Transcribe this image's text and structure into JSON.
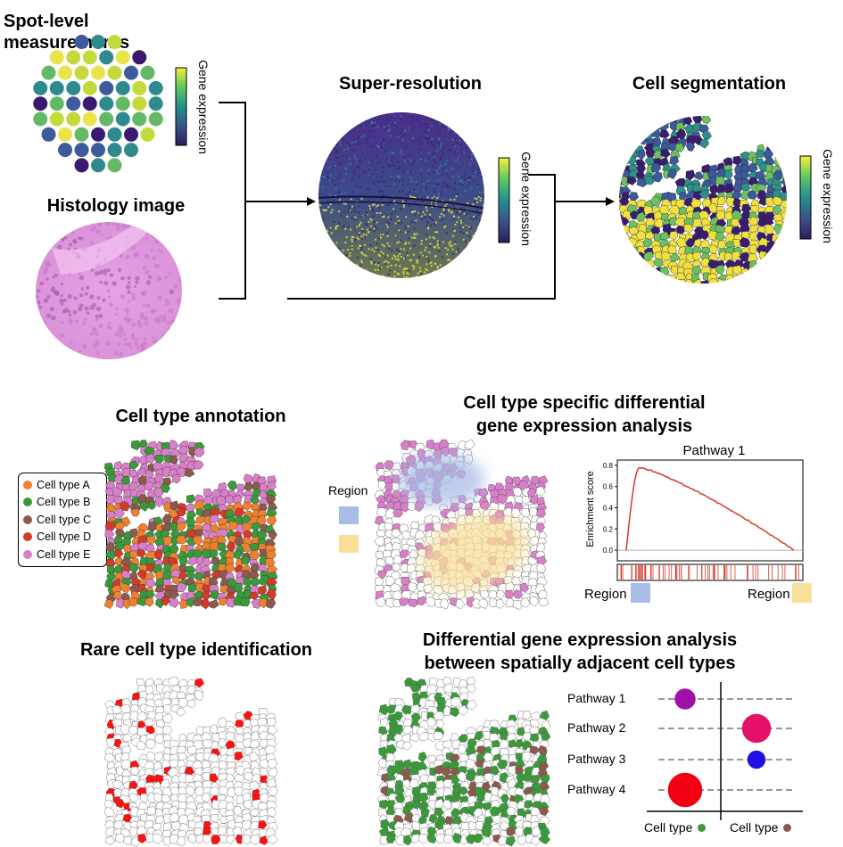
{
  "titles": {
    "spot": "Spot-level measurements",
    "histology": "Histology image",
    "superres": "Super-resolution",
    "cellseg": "Cell segmentation",
    "annotation": "Cell type annotation",
    "deg_line1": "Cell type specific differential",
    "deg_line2": "gene expression analysis",
    "rare": "Rare cell type identification",
    "adj_line1": "Differential gene expression analysis",
    "adj_line2": "between spatially adjacent cell types"
  },
  "colorbar_label": "Gene expression",
  "legend": {
    "items": [
      {
        "label": "Cell type A",
        "color": "#f07f2e"
      },
      {
        "label": "Cell type B",
        "color": "#3a9a3a"
      },
      {
        "label": "Cell type C",
        "color": "#8c5a4c"
      },
      {
        "label": "Cell type D",
        "color": "#d43a2a"
      },
      {
        "label": "Cell type E",
        "color": "#d97fc9"
      }
    ]
  },
  "region": {
    "label": "Region",
    "colors": [
      "#a9bce6",
      "#f9e09a"
    ]
  },
  "enrichment": {
    "title": "Pathway 1",
    "ylabel": "Enrichment score",
    "yticks": [
      "0.8",
      "0.6",
      "0.4",
      "0.2",
      "0.0"
    ],
    "ylim": [
      -0.1,
      0.85
    ],
    "curve_color": "#d43a2a",
    "left_label": "Region",
    "right_label": "Region"
  },
  "dotplot": {
    "pathways": [
      {
        "label": "Pathway 1",
        "side": "left",
        "magnitude": 0.45,
        "color": "#a010a8"
      },
      {
        "label": "Pathway 2",
        "side": "right",
        "magnitude": 0.75,
        "color": "#e4106a"
      },
      {
        "label": "Pathway 3",
        "side": "right",
        "magnitude": 0.35,
        "color": "#2010e6"
      },
      {
        "label": "Pathway 4",
        "side": "left",
        "magnitude": 0.95,
        "color": "#f00010"
      }
    ],
    "xlabel_left": "Cell type",
    "xlabel_left_color": "#3a9a3a",
    "xlabel_right": "Cell type",
    "xlabel_right_color": "#8c5a4c"
  },
  "colors": {
    "viridis": [
      "#440154",
      "#3b528b",
      "#21918c",
      "#5ec962",
      "#fde725"
    ],
    "histology": "#e39be0"
  }
}
